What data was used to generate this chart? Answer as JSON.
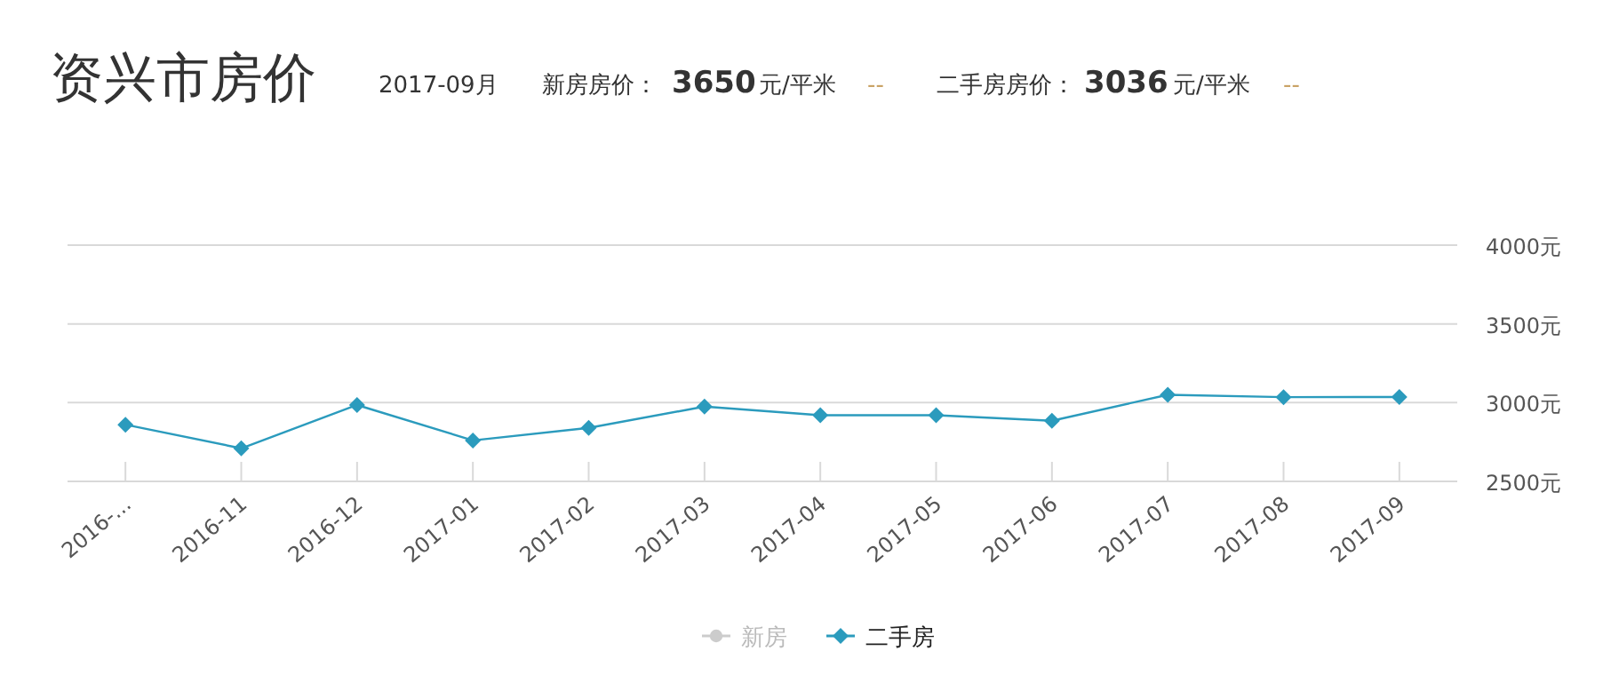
{
  "chart_data": {
    "type": "line",
    "title": "资兴市房价",
    "annotations": [
      "2017-09月",
      "新房房价：",
      "3650",
      "元/平米",
      "--",
      "二手房房价：",
      "3036",
      "元/平米",
      "--"
    ],
    "categories": [
      "2016-...",
      "2016-11",
      "2016-12",
      "2017-01",
      "2017-02",
      "2017-03",
      "2017-04",
      "2017-05",
      "2017-06",
      "2017-07",
      "2017-08",
      "2017-09"
    ],
    "series": [
      {
        "name": "新房",
        "color": "#cccccc",
        "marker": "circle",
        "values": [
          null,
          null,
          null,
          null,
          null,
          null,
          null,
          null,
          null,
          null,
          null,
          null
        ]
      },
      {
        "name": "二手房",
        "color": "#2b9bbd",
        "values": [
          2860,
          2710,
          2985,
          2760,
          2840,
          2975,
          2920,
          2920,
          2885,
          3050,
          3035,
          3036
        ]
      }
    ],
    "ylim": [
      2500,
      4000
    ],
    "yticks": [
      {
        "value": 2500,
        "label": "2500元"
      },
      {
        "value": 3000,
        "label": "3000元"
      },
      {
        "value": 3500,
        "label": "3500元"
      },
      {
        "value": 4000,
        "label": "4000元"
      }
    ],
    "grid": "y",
    "legend": "bottom",
    "marker": "diamond",
    "line_style": "solid"
  }
}
